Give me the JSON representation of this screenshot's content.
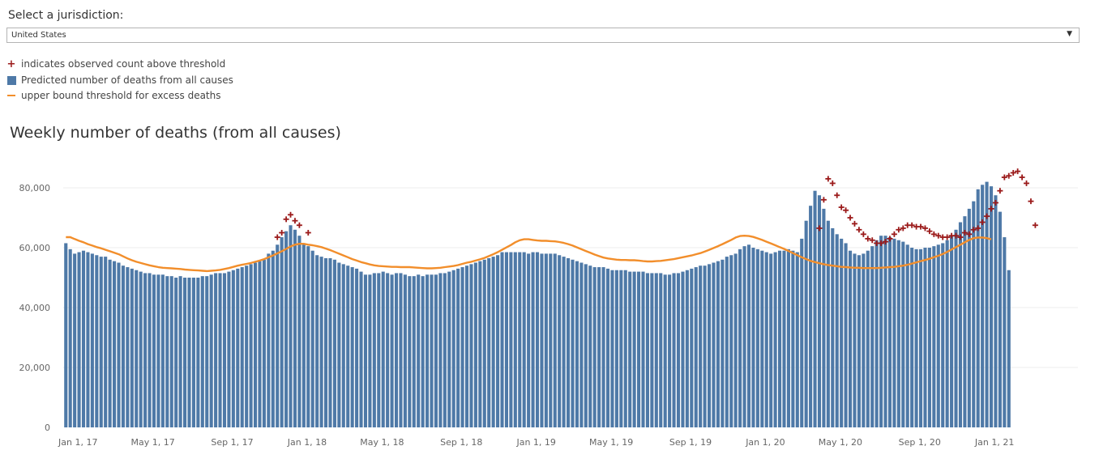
{
  "filter": {
    "label": "Select a jurisdiction:",
    "selected": "United States"
  },
  "legend": {
    "items": [
      {
        "text": "indicates observed count above threshold",
        "icon": "plus-marker",
        "color": "#9b1a1a"
      },
      {
        "text": "Predicted number of deaths from all causes",
        "icon": "square-bar",
        "color": "#4e79a7"
      },
      {
        "text": "upper bound threshold for excess deaths",
        "icon": "line",
        "color": "#f28e2b"
      }
    ]
  },
  "chart_data": {
    "type": "bar",
    "title": "Weekly number of deaths (from all causes)",
    "xlabel": "",
    "ylabel": "",
    "ylim": [
      0,
      90000
    ],
    "y_ticks": [
      0,
      20000,
      40000,
      60000,
      80000
    ],
    "y_tick_labels": [
      "0",
      "20,000",
      "40,000",
      "60,000",
      "80,000"
    ],
    "x_ticks": [
      {
        "label": "Jan 1, 17",
        "week": 0
      },
      {
        "label": "May 1, 17",
        "week": 17
      },
      {
        "label": "Sep 1, 17",
        "week": 35
      },
      {
        "label": "Jan 1, 18",
        "week": 52
      },
      {
        "label": "May 1, 18",
        "week": 69
      },
      {
        "label": "Sep 1, 18",
        "week": 87
      },
      {
        "label": "Jan 1, 19",
        "week": 104
      },
      {
        "label": "May 1, 19",
        "week": 121
      },
      {
        "label": "Sep 1, 19",
        "week": 139
      },
      {
        "label": "Jan 1, 20",
        "week": 156
      },
      {
        "label": "May 1, 20",
        "week": 173
      },
      {
        "label": "Sep 1, 20",
        "week": 191
      },
      {
        "label": "Jan 1, 21",
        "week": 208
      }
    ],
    "grid": true,
    "series": [
      {
        "name": "Predicted number of deaths from all causes",
        "kind": "bar",
        "color": "#4e79a7",
        "values": [
          61500,
          59500,
          58000,
          58500,
          59000,
          58500,
          58000,
          57500,
          57000,
          57000,
          56000,
          55500,
          55000,
          54000,
          53500,
          53000,
          52500,
          52000,
          51500,
          51500,
          51000,
          51000,
          51000,
          50500,
          50500,
          50000,
          50500,
          50000,
          50000,
          50000,
          50000,
          50500,
          50500,
          51000,
          51500,
          51500,
          51500,
          52000,
          52500,
          53000,
          53500,
          54000,
          54500,
          55000,
          55500,
          56000,
          58000,
          59000,
          61000,
          63500,
          65500,
          67500,
          66000,
          64000,
          61500,
          60500,
          59000,
          57500,
          57000,
          56500,
          56500,
          56000,
          55000,
          54500,
          54000,
          53500,
          53000,
          52000,
          51000,
          51000,
          51500,
          51500,
          52000,
          51500,
          51000,
          51500,
          51500,
          51000,
          50500,
          50500,
          51000,
          50500,
          51000,
          51000,
          51000,
          51500,
          51500,
          52000,
          52500,
          53000,
          53500,
          54000,
          54500,
          55000,
          55500,
          56000,
          56500,
          57000,
          57500,
          58500,
          58500,
          58500,
          58500,
          58500,
          58500,
          58000,
          58500,
          58500,
          58000,
          58000,
          58000,
          58000,
          57500,
          57000,
          56500,
          56000,
          55500,
          55000,
          54500,
          54000,
          53500,
          53500,
          53500,
          53000,
          52500,
          52500,
          52500,
          52500,
          52000,
          52000,
          52000,
          52000,
          51500,
          51500,
          51500,
          51500,
          51000,
          51000,
          51500,
          51500,
          52000,
          52500,
          53000,
          53500,
          54000,
          54000,
          54500,
          55000,
          55500,
          56000,
          57000,
          57500,
          58000,
          59500,
          60500,
          61000,
          60000,
          59500,
          59000,
          58500,
          58000,
          58500,
          59000,
          59000,
          59500,
          59000,
          58500,
          63000,
          69000,
          74000,
          79000,
          77500,
          73000,
          69000,
          66500,
          64500,
          63000,
          61500,
          59000,
          58000,
          57500,
          58000,
          59000,
          60500,
          62500,
          64000,
          64000,
          63500,
          63000,
          62500,
          62000,
          61000,
          60000,
          59500,
          59500,
          60000,
          60000,
          60500,
          61000,
          61500,
          62500,
          64000,
          66000,
          68500,
          70500,
          73000,
          75500,
          79500,
          81000,
          82000,
          80500,
          77500,
          72000,
          63500,
          52500
        ]
      },
      {
        "name": "upper bound threshold for excess deaths",
        "kind": "line",
        "color": "#f28e2b",
        "values": [
          63500,
          63500,
          62900,
          62300,
          61800,
          61200,
          60700,
          60200,
          59800,
          59300,
          58800,
          58300,
          57800,
          57100,
          56400,
          55800,
          55300,
          54900,
          54500,
          54100,
          53800,
          53500,
          53300,
          53200,
          53100,
          53000,
          52900,
          52700,
          52600,
          52500,
          52400,
          52300,
          52200,
          52300,
          52400,
          52600,
          52900,
          53200,
          53600,
          54000,
          54300,
          54600,
          54900,
          55300,
          55700,
          56200,
          56800,
          57400,
          58100,
          58800,
          59600,
          60400,
          61000,
          61300,
          61300,
          61000,
          60800,
          60500,
          60200,
          59700,
          59200,
          58600,
          58000,
          57400,
          56800,
          56200,
          55700,
          55200,
          54800,
          54400,
          54100,
          53900,
          53800,
          53700,
          53600,
          53600,
          53500,
          53500,
          53500,
          53400,
          53300,
          53200,
          53100,
          53100,
          53200,
          53300,
          53500,
          53700,
          53900,
          54200,
          54600,
          55000,
          55300,
          55700,
          56100,
          56600,
          57200,
          57800,
          58500,
          59300,
          60100,
          60900,
          61800,
          62500,
          62800,
          62800,
          62600,
          62400,
          62300,
          62300,
          62200,
          62100,
          61900,
          61600,
          61200,
          60700,
          60100,
          59500,
          58900,
          58300,
          57700,
          57200,
          56700,
          56400,
          56200,
          56000,
          55900,
          55900,
          55800,
          55800,
          55700,
          55500,
          55400,
          55400,
          55500,
          55600,
          55800,
          56000,
          56200,
          56500,
          56800,
          57100,
          57400,
          57800,
          58200,
          58700,
          59300,
          59900,
          60500,
          61200,
          61900,
          62600,
          63400,
          63900,
          64000,
          63900,
          63600,
          63100,
          62600,
          62000,
          61400,
          60800,
          60200,
          59600,
          58900,
          58200,
          57500,
          56800,
          56200,
          55600,
          55200,
          54800,
          54500,
          54200,
          54000,
          53800,
          53600,
          53500,
          53400,
          53300,
          53300,
          53200,
          53200,
          53200,
          53200,
          53300,
          53400,
          53500,
          53600,
          53800,
          54000,
          54300,
          54700,
          55100,
          55500,
          55900,
          56300,
          56800,
          57300,
          57900,
          58600,
          59400,
          60200,
          61000,
          61800,
          62600,
          63200,
          63400,
          63400,
          63200,
          62800
        ]
      },
      {
        "name": "indicates observed count above threshold",
        "kind": "marker",
        "color": "#9b1a1a",
        "points": [
          [
            48,
            63500
          ],
          [
            49,
            65000
          ],
          [
            50,
            69500
          ],
          [
            51,
            71000
          ],
          [
            52,
            69000
          ],
          [
            53,
            67500
          ],
          [
            55,
            65000
          ],
          [
            171,
            66500
          ],
          [
            172,
            76000
          ],
          [
            173,
            83000
          ],
          [
            174,
            81500
          ],
          [
            175,
            77500
          ],
          [
            176,
            73500
          ],
          [
            177,
            72500
          ],
          [
            178,
            70000
          ],
          [
            179,
            68000
          ],
          [
            180,
            66000
          ],
          [
            181,
            64500
          ],
          [
            182,
            63000
          ],
          [
            183,
            62500
          ],
          [
            184,
            61500
          ],
          [
            185,
            61500
          ],
          [
            186,
            62000
          ],
          [
            187,
            63000
          ],
          [
            188,
            64500
          ],
          [
            189,
            66000
          ],
          [
            190,
            66500
          ],
          [
            191,
            67500
          ],
          [
            192,
            67500
          ],
          [
            193,
            67000
          ],
          [
            194,
            67000
          ],
          [
            195,
            66500
          ],
          [
            196,
            65500
          ],
          [
            197,
            64500
          ],
          [
            198,
            64000
          ],
          [
            199,
            63500
          ],
          [
            200,
            63500
          ],
          [
            201,
            64000
          ],
          [
            202,
            64000
          ],
          [
            203,
            63500
          ],
          [
            204,
            65000
          ],
          [
            205,
            64500
          ],
          [
            206,
            66000
          ],
          [
            207,
            66500
          ],
          [
            208,
            68500
          ],
          [
            209,
            70500
          ],
          [
            210,
            73000
          ],
          [
            211,
            75000
          ],
          [
            212,
            79000
          ],
          [
            213,
            83500
          ],
          [
            214,
            84000
          ],
          [
            215,
            85000
          ],
          [
            216,
            85500
          ],
          [
            217,
            83500
          ],
          [
            218,
            81500
          ],
          [
            219,
            75500
          ],
          [
            220,
            67500
          ]
        ]
      }
    ]
  }
}
